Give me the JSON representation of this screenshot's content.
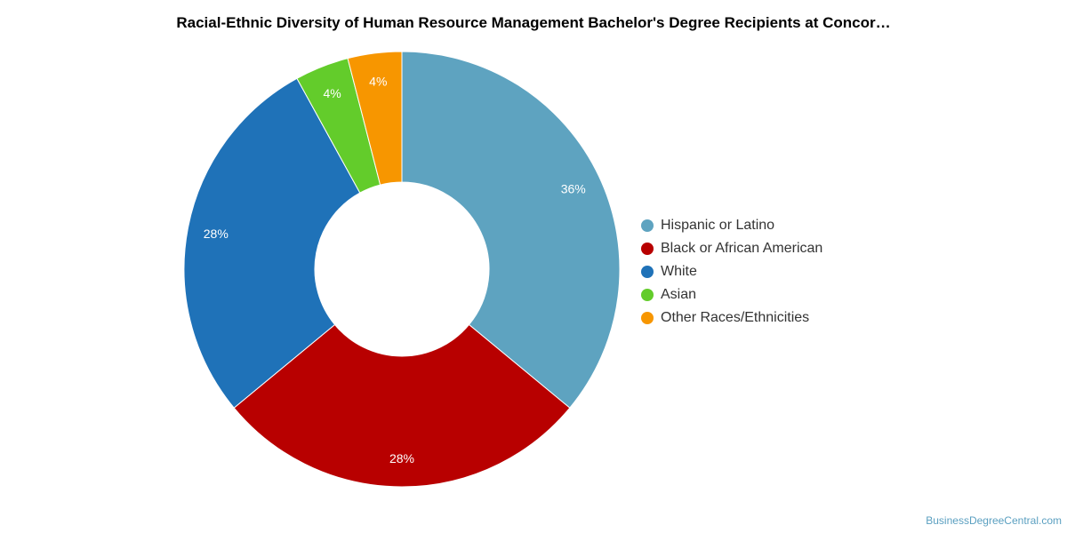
{
  "title": "Racial-Ethnic Diversity of Human Resource Management Bachelor's Degree Recipients at Concor…",
  "credit": "BusinessDegreeCentral.com",
  "chart_data": {
    "type": "pie",
    "donut": true,
    "legend_position": "right",
    "slices": [
      {
        "name": "Hispanic or Latino",
        "value": 36,
        "label": "36%",
        "color": "#5ea3c0"
      },
      {
        "name": "Black or African American",
        "value": 28,
        "label": "28%",
        "color": "#b80000"
      },
      {
        "name": "White",
        "value": 28,
        "label": "28%",
        "color": "#1f72b8"
      },
      {
        "name": "Asian",
        "value": 4,
        "label": "4%",
        "color": "#63cc2b"
      },
      {
        "name": "Other Races/Ethnicities",
        "value": 4,
        "label": "4%",
        "color": "#f79600"
      }
    ]
  }
}
